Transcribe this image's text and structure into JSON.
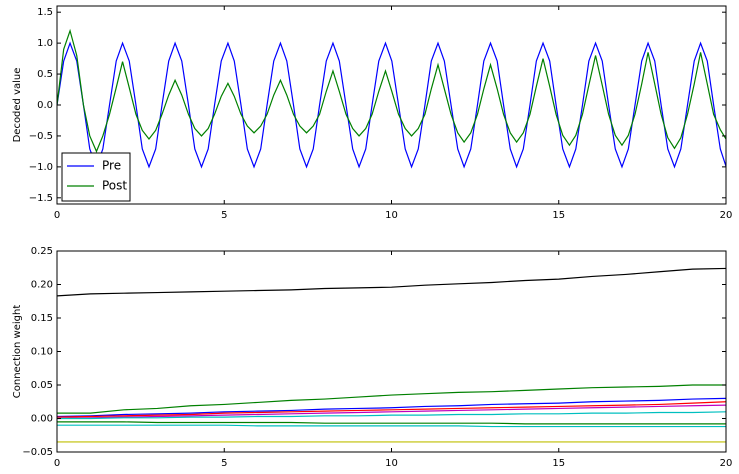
{
  "chart_data": [
    {
      "type": "line",
      "ylabel": "Decoded value",
      "x": [
        0,
        0.2,
        0.39,
        0.59,
        0.79,
        0.98,
        1.18,
        1.37,
        1.57,
        1.77,
        1.96,
        2.16,
        2.36,
        2.55,
        2.75,
        2.95,
        3.14,
        3.34,
        3.53,
        3.73,
        3.93,
        4.12,
        4.32,
        4.52,
        4.71,
        4.91,
        5.11,
        5.3,
        5.5,
        5.69,
        5.89,
        6.09,
        6.28,
        6.48,
        6.68,
        6.87,
        7.07,
        7.26,
        7.46,
        7.66,
        7.85,
        8.05,
        8.25,
        8.44,
        8.64,
        8.84,
        9.03,
        9.23,
        9.42,
        9.62,
        9.82,
        10.01,
        10.21,
        10.41,
        10.6,
        10.8,
        11,
        11.19,
        11.39,
        11.58,
        11.78,
        11.98,
        12.17,
        12.37,
        12.57,
        12.76,
        12.96,
        13.16,
        13.35,
        13.55,
        13.74,
        13.94,
        14.14,
        14.33,
        14.53,
        14.73,
        14.92,
        15.12,
        15.32,
        15.51,
        15.71,
        15.9,
        16.1,
        16.3,
        16.49,
        16.69,
        16.89,
        17.08,
        17.28,
        17.48,
        17.67,
        17.87,
        18.06,
        18.26,
        18.46,
        18.65,
        18.85,
        19.05,
        19.24,
        19.44,
        19.63,
        19.83,
        20
      ],
      "series": [
        {
          "name": "Pre",
          "color": "#0000ff",
          "values": [
            0,
            0.71,
            1,
            0.71,
            0,
            -0.71,
            -1,
            -0.71,
            0,
            0.71,
            1,
            0.71,
            0,
            -0.71,
            -1,
            -0.71,
            0,
            0.71,
            1,
            0.71,
            0,
            -0.71,
            -1,
            -0.71,
            0,
            0.71,
            1,
            0.71,
            0,
            -0.71,
            -1,
            -0.71,
            0,
            0.71,
            1,
            0.71,
            0,
            -0.71,
            -1,
            -0.71,
            0,
            0.71,
            1,
            0.71,
            0,
            -0.71,
            -1,
            -0.71,
            0,
            0.71,
            1,
            0.71,
            0,
            -0.71,
            -1,
            -0.71,
            0,
            0.71,
            1,
            0.71,
            0,
            -0.71,
            -1,
            -0.71,
            0,
            0.71,
            1,
            0.71,
            0,
            -0.71,
            -1,
            -0.71,
            0,
            0.71,
            1,
            0.71,
            0,
            -0.71,
            -1,
            -0.71,
            0,
            0.71,
            1,
            0.71,
            0,
            -0.71,
            -1,
            -0.71,
            0,
            0.71,
            1,
            0.71,
            0,
            -0.71,
            -1,
            -0.71,
            0,
            0.71,
            1,
            0.71,
            0,
            -0.71,
            -0.99
          ]
        },
        {
          "name": "Post",
          "color": "#008000",
          "values": [
            0,
            0.9,
            1.2,
            0.8,
            0,
            -0.5,
            -0.75,
            -0.5,
            -0.15,
            0.28,
            0.7,
            0.28,
            -0.15,
            -0.41,
            -0.55,
            -0.41,
            -0.15,
            0.16,
            0.4,
            0.16,
            -0.15,
            -0.38,
            -0.5,
            -0.38,
            -0.15,
            0.14,
            0.35,
            0.14,
            -0.15,
            -0.34,
            -0.45,
            -0.34,
            -0.15,
            0.16,
            0.4,
            0.16,
            -0.15,
            -0.34,
            -0.45,
            -0.34,
            -0.15,
            0.22,
            0.55,
            0.22,
            -0.15,
            -0.38,
            -0.5,
            -0.38,
            -0.15,
            0.22,
            0.55,
            0.22,
            -0.15,
            -0.38,
            -0.5,
            -0.38,
            -0.15,
            0.26,
            0.65,
            0.26,
            -0.15,
            -0.45,
            -0.6,
            -0.45,
            -0.15,
            0.26,
            0.65,
            0.26,
            -0.15,
            -0.45,
            -0.6,
            -0.45,
            -0.15,
            0.3,
            0.75,
            0.3,
            -0.15,
            -0.49,
            -0.65,
            -0.49,
            -0.15,
            0.32,
            0.8,
            0.32,
            -0.15,
            -0.49,
            -0.65,
            -0.49,
            -0.15,
            0.34,
            0.85,
            0.34,
            -0.15,
            -0.53,
            -0.7,
            -0.53,
            -0.15,
            0.34,
            0.85,
            0.34,
            -0.15,
            -0.4,
            -0.55
          ]
        }
      ],
      "xlim": [
        0,
        20
      ],
      "xticks": [
        0,
        5,
        10,
        15,
        20
      ],
      "ylim": [
        -1.6,
        1.6
      ],
      "yticks": [
        {
          "value": -1.5,
          "label": "−1.5"
        },
        {
          "value": -1,
          "label": "−1.0"
        },
        {
          "value": -0.5,
          "label": "−0.5"
        },
        {
          "value": 0,
          "label": "0.0"
        },
        {
          "value": 0.5,
          "label": "0.5"
        },
        {
          "value": 1,
          "label": "1.0"
        },
        {
          "value": 1.5,
          "label": "1.5"
        }
      ],
      "legend": "lower left"
    },
    {
      "type": "line",
      "ylabel": "Connection weight",
      "x": [
        0,
        1,
        2,
        3,
        4,
        5,
        6,
        7,
        8,
        9,
        10,
        11,
        12,
        13,
        14,
        15,
        16,
        17,
        18,
        19,
        20
      ],
      "series": [
        {
          "color": "#000000",
          "values": [
            0.183,
            0.186,
            0.187,
            0.188,
            0.189,
            0.19,
            0.191,
            0.192,
            0.194,
            0.195,
            0.196,
            0.199,
            0.201,
            0.203,
            0.206,
            0.208,
            0.212,
            0.215,
            0.219,
            0.223,
            0.224
          ]
        },
        {
          "color": "#008000",
          "values": [
            0.008,
            0.008,
            0.013,
            0.015,
            0.019,
            0.021,
            0.024,
            0.027,
            0.029,
            0.032,
            0.035,
            0.037,
            0.039,
            0.04,
            0.042,
            0.044,
            0.046,
            0.047,
            0.048,
            0.05,
            0.05
          ]
        },
        {
          "color": "#0000ff",
          "values": [
            0.003,
            0.004,
            0.006,
            0.007,
            0.008,
            0.01,
            0.011,
            0.012,
            0.014,
            0.015,
            0.016,
            0.018,
            0.019,
            0.021,
            0.022,
            0.023,
            0.025,
            0.026,
            0.027,
            0.029,
            0.03
          ]
        },
        {
          "color": "#ff0000",
          "values": [
            0.002,
            0.003,
            0.004,
            0.005,
            0.006,
            0.008,
            0.009,
            0.01,
            0.011,
            0.012,
            0.013,
            0.014,
            0.015,
            0.016,
            0.017,
            0.018,
            0.019,
            0.02,
            0.021,
            0.023,
            0.025
          ]
        },
        {
          "color": "#bf00bf",
          "values": [
            0,
            0.001,
            0.002,
            0.003,
            0.004,
            0.005,
            0.006,
            0.007,
            0.008,
            0.009,
            0.01,
            0.011,
            0.012,
            0.013,
            0.014,
            0.015,
            0.016,
            0.017,
            0.018,
            0.019,
            0.02
          ]
        },
        {
          "color": "#00bfbf",
          "values": [
            0,
            0,
            0.001,
            0.001,
            0.002,
            0.002,
            0.003,
            0.003,
            0.004,
            0.004,
            0.005,
            0.005,
            0.006,
            0.006,
            0.007,
            0.007,
            0.008,
            0.008,
            0.009,
            0.009,
            0.01
          ]
        },
        {
          "color": "#bfbf00",
          "values": [
            -0.035,
            -0.035,
            -0.035,
            -0.035,
            -0.035,
            -0.035,
            -0.035,
            -0.035,
            -0.035,
            -0.035,
            -0.035,
            -0.035,
            -0.035,
            -0.035,
            -0.035,
            -0.035,
            -0.035,
            -0.035,
            -0.035,
            -0.035,
            -0.035
          ]
        },
        {
          "color": "#00bfbf",
          "values": [
            -0.01,
            -0.01,
            -0.01,
            -0.01,
            -0.01,
            -0.01,
            -0.011,
            -0.011,
            -0.011,
            -0.011,
            -0.011,
            -0.011,
            -0.011,
            -0.012,
            -0.012,
            -0.012,
            -0.012,
            -0.012,
            -0.012,
            -0.012,
            -0.012
          ]
        },
        {
          "color": "#008000",
          "values": [
            -0.005,
            -0.005,
            -0.005,
            -0.006,
            -0.006,
            -0.006,
            -0.006,
            -0.006,
            -0.007,
            -0.007,
            -0.007,
            -0.007,
            -0.007,
            -0.007,
            -0.008,
            -0.008,
            -0.008,
            -0.008,
            -0.008,
            -0.008,
            -0.008
          ]
        }
      ],
      "xlim": [
        0,
        20
      ],
      "xticks": [
        0,
        5,
        10,
        15,
        20
      ],
      "ylim": [
        -0.05,
        0.25
      ],
      "yticks": [
        {
          "value": -0.05,
          "label": "−0.05"
        },
        {
          "value": 0,
          "label": "0.00"
        },
        {
          "value": 0.05,
          "label": "0.05"
        },
        {
          "value": 0.1,
          "label": "0.10"
        },
        {
          "value": 0.15,
          "label": "0.15"
        },
        {
          "value": 0.2,
          "label": "0.20"
        },
        {
          "value": 0.25,
          "label": "0.25"
        }
      ]
    }
  ]
}
